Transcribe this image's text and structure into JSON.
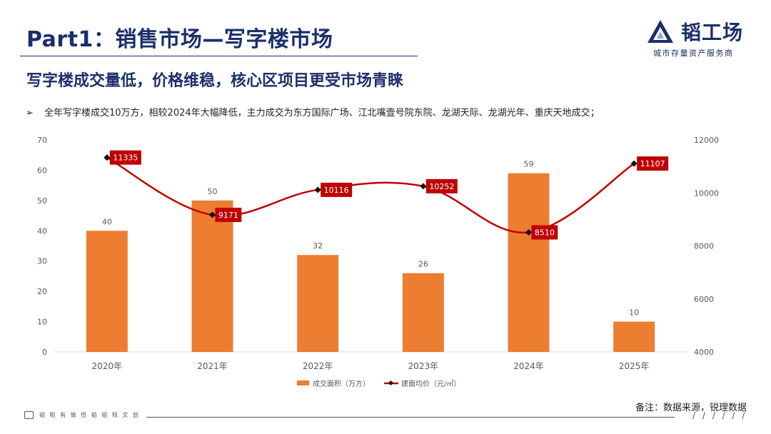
{
  "header": {
    "title": "Part1：销售市场—写字楼市场",
    "subtitle": "写字楼成交量低，价格维稳，核心区项目更受市场青睐"
  },
  "logo": {
    "name": "韬工场",
    "tagline": "城市存量资产服务商"
  },
  "bullet": {
    "marker": "➢",
    "text": "全年写字楼成交10万方，相较2024年大幅降低，主力成交为东方国际广场、江北嘴壹号院东院、龙湖天际、龙湖光年、重庆天地成交；"
  },
  "footer": {
    "note": "备注：数据来源，锐理数据",
    "left_text": "韬 稻 有 做 悟 韬 韬 规 文 划",
    "slashes": "/ / / / / /"
  },
  "colors": {
    "navy": "#1b2f6b",
    "bar": "#ed7d31",
    "line": "#c00000",
    "axis_text": "#595959",
    "grid": "#d9d9d9"
  },
  "chart_data": {
    "type": "bar",
    "categories": [
      "2020年",
      "2021年",
      "2022年",
      "2023年",
      "2024年",
      "2025年"
    ],
    "series": [
      {
        "name": "成交面积（万方）",
        "type": "bar",
        "axis": "left",
        "values": [
          40,
          50,
          32,
          26,
          59,
          10
        ]
      },
      {
        "name": "建面均价（元/㎡）",
        "type": "line",
        "axis": "right",
        "values": [
          11335,
          9171,
          10116,
          10252,
          8510,
          11107
        ]
      }
    ],
    "y_left": {
      "min": 0,
      "max": 70,
      "ticks": [
        0,
        10,
        20,
        30,
        40,
        50,
        60,
        70
      ]
    },
    "y_right": {
      "min": 4000,
      "max": 12000,
      "ticks": [
        4000,
        6000,
        8000,
        10000,
        12000
      ]
    },
    "legend_position": "bottom-center",
    "grid": false
  }
}
